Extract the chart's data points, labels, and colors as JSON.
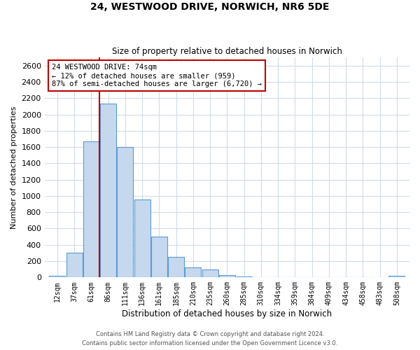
{
  "title": "24, WESTWOOD DRIVE, NORWICH, NR6 5DE",
  "subtitle": "Size of property relative to detached houses in Norwich",
  "xlabel": "Distribution of detached houses by size in Norwich",
  "ylabel": "Number of detached properties",
  "bin_labels": [
    "12sqm",
    "37sqm",
    "61sqm",
    "86sqm",
    "111sqm",
    "136sqm",
    "161sqm",
    "185sqm",
    "210sqm",
    "235sqm",
    "260sqm",
    "285sqm",
    "310sqm",
    "334sqm",
    "359sqm",
    "384sqm",
    "409sqm",
    "434sqm",
    "458sqm",
    "483sqm",
    "508sqm"
  ],
  "bar_values": [
    20,
    300,
    1670,
    2130,
    1600,
    960,
    505,
    255,
    120,
    95,
    30,
    10,
    5,
    5,
    5,
    5,
    5,
    5,
    5,
    5,
    20
  ],
  "bar_color": "#c5d8ed",
  "bar_edge_color": "#5b9bd5",
  "marker_line_color": "#c00000",
  "annotation_text": "24 WESTWOOD DRIVE: 74sqm\n← 12% of detached houses are smaller (959)\n87% of semi-detached houses are larger (6,720) →",
  "annotation_box_edge": "#c00000",
  "ylim": [
    0,
    2700
  ],
  "yticks": [
    0,
    200,
    400,
    600,
    800,
    1000,
    1200,
    1400,
    1600,
    1800,
    2000,
    2200,
    2400,
    2600
  ],
  "footnote1": "Contains HM Land Registry data © Crown copyright and database right 2024.",
  "footnote2": "Contains public sector information licensed under the Open Government Licence v3.0.",
  "bg_color": "#ffffff",
  "grid_color": "#d0dce8"
}
